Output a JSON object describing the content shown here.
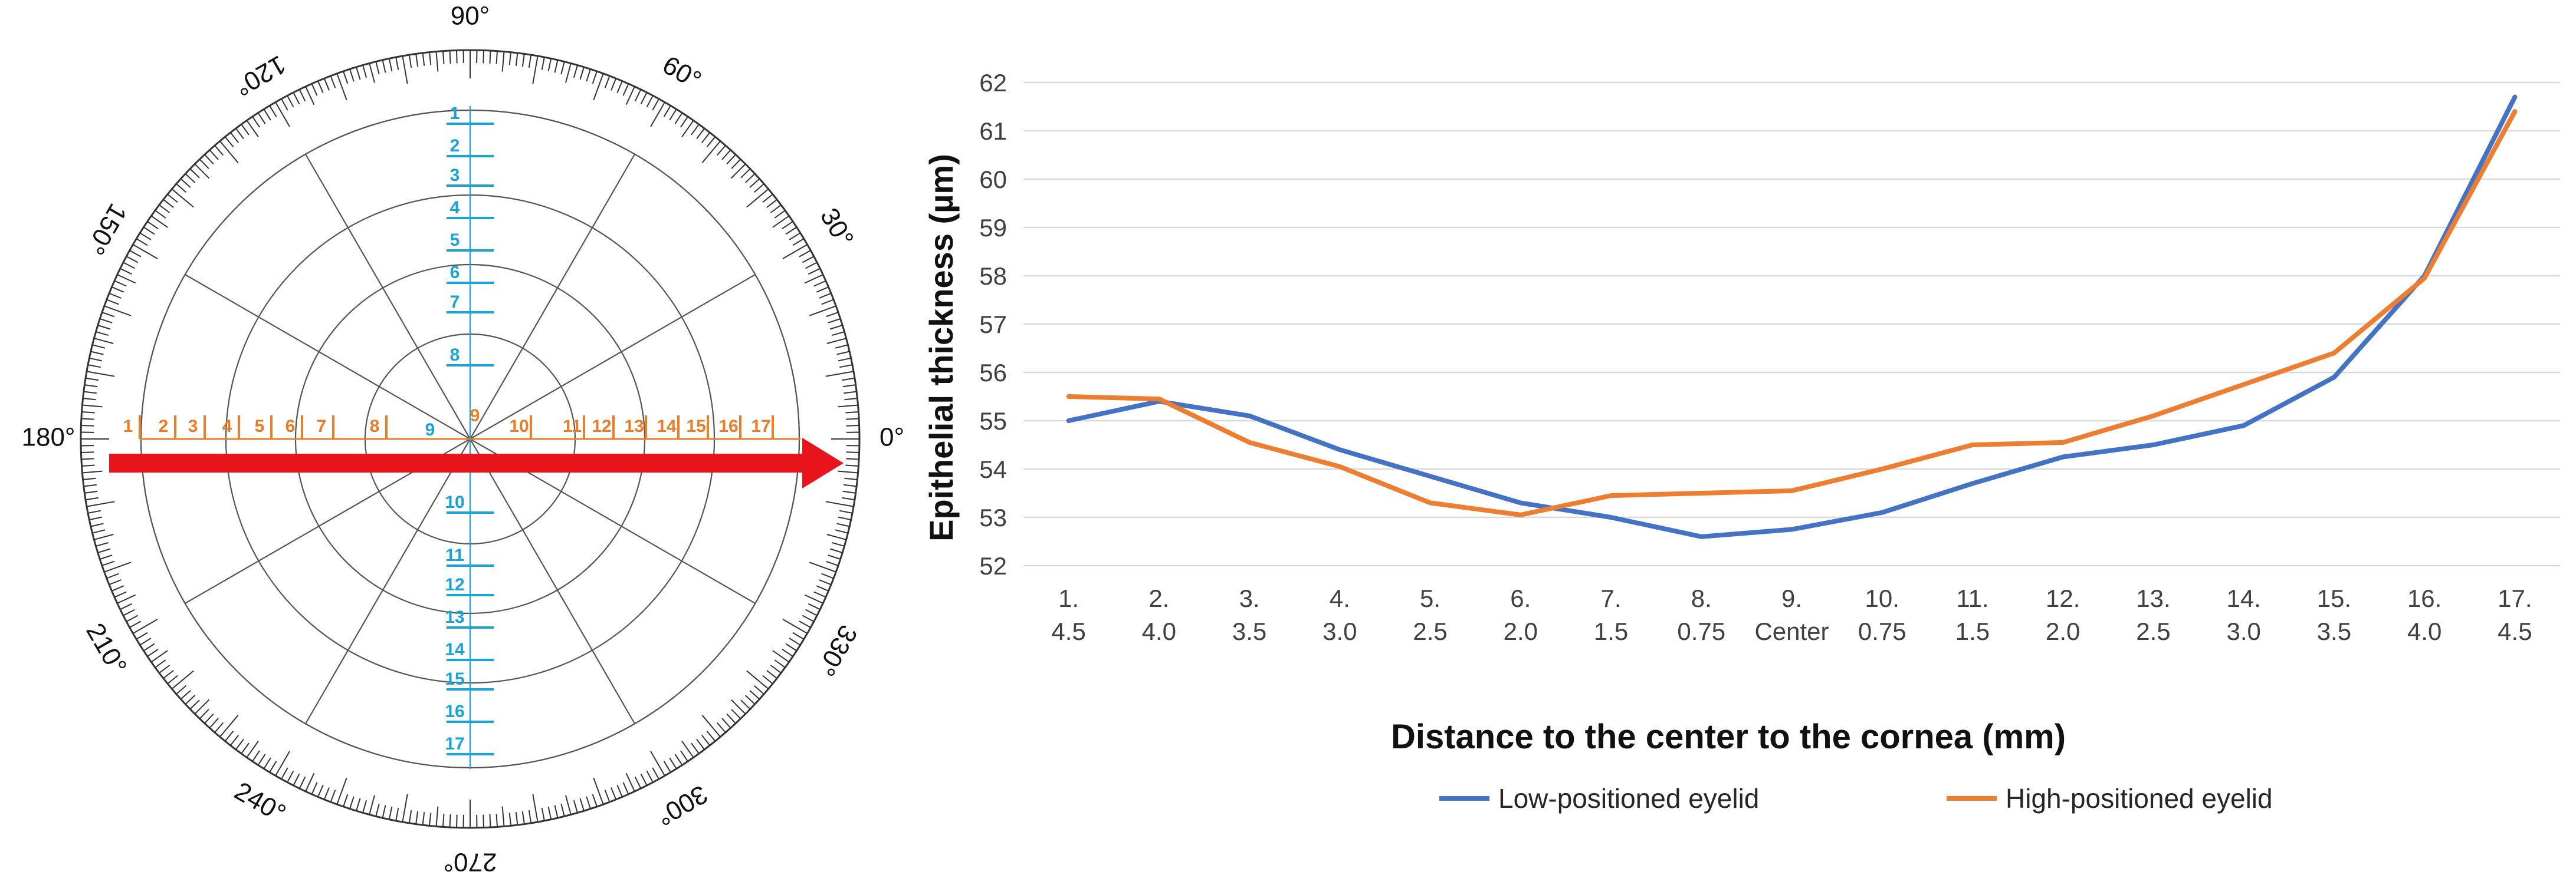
{
  "polar_diagram": {
    "angle_labels": [
      "90°",
      "60°",
      "30°",
      "0°",
      "330°",
      "300°",
      "270°",
      "240°",
      "210°",
      "180°",
      "150°",
      "120°"
    ],
    "horizontal_points": [
      "1",
      "2",
      "3",
      "4",
      "5",
      "6",
      "7",
      "8",
      "9",
      "10",
      "11",
      "12",
      "13",
      "14",
      "15",
      "16",
      "17"
    ],
    "vertical_points": [
      "1",
      "2",
      "3",
      "4",
      "5",
      "6",
      "7",
      "8",
      "9",
      "10",
      "11",
      "12",
      "13",
      "14",
      "15",
      "16",
      "17"
    ],
    "colors": {
      "horizontal": "#E87D2A",
      "vertical": "#1AA3D4",
      "arrow": "#E8141C"
    }
  },
  "chart_data": {
    "type": "line",
    "categories": [
      "1.\n4.5",
      "2.\n4.0",
      "3.\n3.5",
      "4.\n3.0",
      "5.\n2.5",
      "6.\n2.0",
      "7.\n1.5",
      "8.\n0.75",
      "9.\nCenter",
      "10.\n0.75",
      "11.\n1.5",
      "12.\n2.0",
      "13.\n2.5",
      "14.\n3.0",
      "15.\n3.5",
      "16.\n4.0",
      "17.\n4.5"
    ],
    "category_lines": [
      [
        "1.",
        "4.5"
      ],
      [
        "2.",
        "4.0"
      ],
      [
        "3.",
        "3.5"
      ],
      [
        "4.",
        "3.0"
      ],
      [
        "5.",
        "2.5"
      ],
      [
        "6.",
        "2.0"
      ],
      [
        "7.",
        "1.5"
      ],
      [
        "8.",
        "0.75"
      ],
      [
        "9.",
        "Center"
      ],
      [
        "10.",
        "0.75"
      ],
      [
        "11.",
        "1.5"
      ],
      [
        "12.",
        "2.0"
      ],
      [
        "13.",
        "2.5"
      ],
      [
        "14.",
        "3.0"
      ],
      [
        "15.",
        "3.5"
      ],
      [
        "16.",
        "4.0"
      ],
      [
        "17.",
        "4.5"
      ]
    ],
    "series": [
      {
        "name": "Low-positioned eyelid",
        "color": "#4472C4",
        "values": [
          55.0,
          55.4,
          55.1,
          54.4,
          53.85,
          53.3,
          53.0,
          52.6,
          52.75,
          53.1,
          53.7,
          54.25,
          54.5,
          54.9,
          55.9,
          58.0,
          61.7
        ]
      },
      {
        "name": "High-positioned eyelid",
        "color": "#ED7D31",
        "values": [
          55.5,
          55.45,
          54.55,
          54.05,
          53.3,
          53.05,
          53.45,
          53.5,
          53.55,
          54.0,
          54.5,
          54.55,
          55.1,
          55.75,
          56.4,
          57.95,
          61.4
        ]
      }
    ],
    "ylim": [
      52,
      62
    ],
    "yticks": [
      "52",
      "53",
      "54",
      "55",
      "56",
      "57",
      "58",
      "59",
      "60",
      "61",
      "62"
    ],
    "title": "",
    "xlabel": "Distance to the center to the cornea (mm)",
    "ylabel": "Epithelial thickness (µm)",
    "grid": true,
    "legend_position": "bottom"
  }
}
